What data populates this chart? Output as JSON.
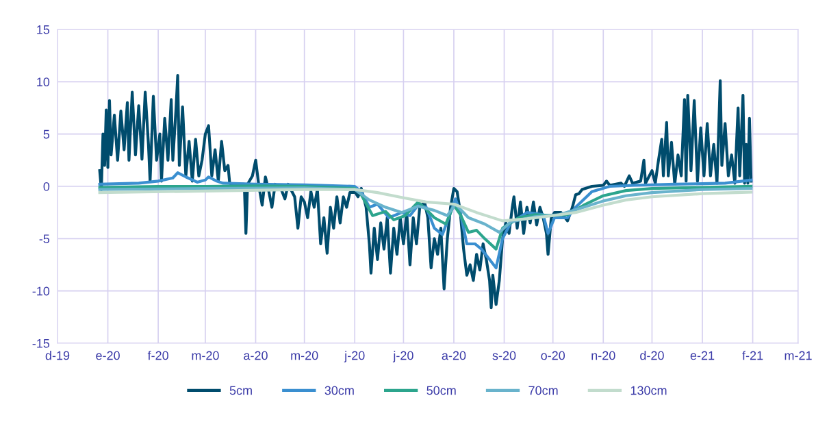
{
  "chart_data": {
    "type": "line",
    "xlim": [
      "2019-12-01",
      "2021-03-01"
    ],
    "ylim": [
      -15,
      15
    ],
    "yticks": [
      -15,
      -10,
      -5,
      0,
      5,
      10,
      15
    ],
    "xticks": [
      {
        "value": "2019-12-01",
        "label": "d-19"
      },
      {
        "value": "2020-01-01",
        "label": "e-20"
      },
      {
        "value": "2020-02-01",
        "label": "f-20"
      },
      {
        "value": "2020-03-01",
        "label": "m-20"
      },
      {
        "value": "2020-04-01",
        "label": "a-20"
      },
      {
        "value": "2020-05-01",
        "label": "m-20"
      },
      {
        "value": "2020-06-01",
        "label": "j-20"
      },
      {
        "value": "2020-07-01",
        "label": "j-20"
      },
      {
        "value": "2020-08-01",
        "label": "a-20"
      },
      {
        "value": "2020-09-01",
        "label": "s-20"
      },
      {
        "value": "2020-10-01",
        "label": "o-20"
      },
      {
        "value": "2020-11-01",
        "label": "n-20"
      },
      {
        "value": "2020-12-01",
        "label": "d-20"
      },
      {
        "value": "2021-01-01",
        "label": "e-21"
      },
      {
        "value": "2021-02-01",
        "label": "f-21"
      },
      {
        "value": "2021-03-01",
        "label": "m-21"
      }
    ],
    "grid": true,
    "legend": "bottom",
    "marker": "none",
    "line_style": "solid",
    "series": [
      {
        "name": "5cm",
        "color": "#004c6d",
        "x": [
          "2019-12-27",
          "2019-12-28",
          "2019-12-29",
          "2019-12-30",
          "2019-12-31",
          "2020-01-01",
          "2020-01-02",
          "2020-01-03",
          "2020-01-05",
          "2020-01-07",
          "2020-01-09",
          "2020-01-11",
          "2020-01-13",
          "2020-01-14",
          "2020-01-16",
          "2020-01-18",
          "2020-01-20",
          "2020-01-22",
          "2020-01-24",
          "2020-01-26",
          "2020-01-27",
          "2020-01-29",
          "2020-01-31",
          "2020-02-02",
          "2020-02-03",
          "2020-02-05",
          "2020-02-07",
          "2020-02-09",
          "2020-02-10",
          "2020-02-12",
          "2020-02-13",
          "2020-02-14",
          "2020-02-16",
          "2020-02-18",
          "2020-02-20",
          "2020-02-22",
          "2020-02-24",
          "2020-02-26",
          "2020-02-28",
          "2020-03-01",
          "2020-03-03",
          "2020-03-05",
          "2020-03-07",
          "2020-03-09",
          "2020-03-11",
          "2020-03-13",
          "2020-03-15",
          "2020-03-16",
          "2020-03-18",
          "2020-03-25",
          "2020-03-26",
          "2020-03-27",
          "2020-03-30",
          "2020-04-01",
          "2020-04-03",
          "2020-04-05",
          "2020-04-07",
          "2020-04-09",
          "2020-04-11",
          "2020-04-13",
          "2020-04-17",
          "2020-04-19",
          "2020-04-21",
          "2020-04-25",
          "2020-04-27",
          "2020-04-29",
          "2020-05-01",
          "2020-05-03",
          "2020-05-05",
          "2020-05-07",
          "2020-05-09",
          "2020-05-11",
          "2020-05-13",
          "2020-05-15",
          "2020-05-17",
          "2020-05-19",
          "2020-05-21",
          "2020-05-23",
          "2020-05-25",
          "2020-05-27",
          "2020-05-29",
          "2020-06-01",
          "2020-06-03",
          "2020-06-05",
          "2020-06-08",
          "2020-06-10",
          "2020-06-11",
          "2020-06-13",
          "2020-06-15",
          "2020-06-17",
          "2020-06-19",
          "2020-06-21",
          "2020-06-23",
          "2020-06-25",
          "2020-06-27",
          "2020-06-29",
          "2020-07-01",
          "2020-07-03",
          "2020-07-05",
          "2020-07-07",
          "2020-07-09",
          "2020-07-11",
          "2020-07-14",
          "2020-07-16",
          "2020-07-18",
          "2020-07-20",
          "2020-07-22",
          "2020-07-24",
          "2020-07-26",
          "2020-07-28",
          "2020-07-30",
          "2020-08-01",
          "2020-08-03",
          "2020-08-05",
          "2020-08-07",
          "2020-08-09",
          "2020-08-11",
          "2020-08-13",
          "2020-08-15",
          "2020-08-17",
          "2020-08-19",
          "2020-08-21",
          "2020-08-23",
          "2020-08-24",
          "2020-08-25",
          "2020-08-27",
          "2020-08-29",
          "2020-08-31",
          "2020-09-02",
          "2020-09-04",
          "2020-09-06",
          "2020-09-07",
          "2020-09-09",
          "2020-09-11",
          "2020-09-13",
          "2020-09-15",
          "2020-09-17",
          "2020-09-19",
          "2020-09-21",
          "2020-09-23",
          "2020-09-25",
          "2020-09-27",
          "2020-09-28",
          "2020-09-30",
          "2020-10-02",
          "2020-10-06",
          "2020-10-10",
          "2020-10-13",
          "2020-10-15",
          "2020-10-17",
          "2020-10-19",
          "2020-10-25",
          "2020-11-01",
          "2020-11-03",
          "2020-11-05",
          "2020-11-12",
          "2020-11-14",
          "2020-11-17",
          "2020-11-19",
          "2020-11-24",
          "2020-11-26",
          "2020-11-27",
          "2020-12-01",
          "2020-12-03",
          "2020-12-05",
          "2020-12-07",
          "2020-12-08",
          "2020-12-10",
          "2020-12-11",
          "2020-12-13",
          "2020-12-15",
          "2020-12-17",
          "2020-12-19",
          "2020-12-21",
          "2020-12-22",
          "2020-12-23",
          "2020-12-25",
          "2020-12-27",
          "2020-12-29",
          "2020-12-31",
          "2021-01-02",
          "2021-01-04",
          "2021-01-06",
          "2021-01-08",
          "2021-01-10",
          "2021-01-12",
          "2021-01-13",
          "2021-01-15",
          "2021-01-17",
          "2021-01-19",
          "2021-01-21",
          "2021-01-22",
          "2021-01-23",
          "2021-01-24",
          "2021-01-26",
          "2021-01-27",
          "2021-01-28",
          "2021-01-29",
          "2021-01-30",
          "2021-01-31"
        ],
        "values": [
          1.5,
          -0.3,
          5,
          2,
          7.3,
          1.8,
          8.2,
          3,
          6.8,
          2.5,
          7.2,
          3.5,
          8,
          2.5,
          9,
          3,
          7.7,
          2.6,
          9,
          4,
          0.5,
          8.6,
          2.5,
          5,
          0.5,
          6.5,
          2.5,
          8.3,
          2.5,
          7.5,
          10.6,
          2,
          7.6,
          1,
          4.3,
          0.5,
          4.5,
          1,
          2.5,
          5,
          5.8,
          1,
          3.5,
          0.5,
          4.3,
          1.5,
          2,
          0.3,
          0.2,
          0.2,
          -4.5,
          0.2,
          1,
          2.5,
          0,
          -1.8,
          0.9,
          -0.4,
          -2,
          0.2,
          -0.4,
          -1.2,
          0.2,
          -1,
          -4,
          -1,
          -1.5,
          -3,
          -0.5,
          -2,
          -0.3,
          -5.5,
          -3,
          -6.4,
          -2,
          -4,
          -1,
          -3.5,
          -1,
          -2,
          -0.6,
          -0.5,
          -1,
          -0.2,
          -2,
          -5.5,
          -8.3,
          -4,
          -7,
          -3.5,
          -6,
          -3,
          -8.3,
          -4,
          -6.5,
          -3,
          -5.5,
          -2.5,
          -7.5,
          -3,
          -5.5,
          -2,
          -1.5,
          -3,
          -7.8,
          -5,
          -6.5,
          -4,
          -9.8,
          -5,
          -2,
          -0.2,
          -0.5,
          -2.5,
          -6,
          -8.5,
          -7.5,
          -9,
          -6.5,
          -8,
          -5.5,
          -7,
          -9,
          -11.6,
          -8.5,
          -11.3,
          -9,
          -5,
          -3.5,
          -4.5,
          -2,
          -1,
          -4,
          -1.5,
          -4.5,
          -2,
          -3.5,
          -1.5,
          -3.7,
          -2,
          -3,
          -4.5,
          -6.5,
          -3,
          -2.5,
          -2.5,
          -3.3,
          -2,
          -0.8,
          -0.7,
          -0.3,
          0,
          0.1,
          0.5,
          0.1,
          0.3,
          0,
          1,
          0.3,
          0.5,
          2.5,
          0.3,
          1.5,
          0.3,
          2.5,
          4.5,
          1,
          6.1,
          1,
          4.2,
          0.2,
          3,
          1,
          8.3,
          0.5,
          8.7,
          1.5,
          8.2,
          0.5,
          5.6,
          1,
          6,
          1,
          4,
          0.3,
          10.1,
          2,
          6,
          1,
          3,
          0.3,
          4,
          7.5,
          1,
          8.7,
          0.3,
          4,
          0.3,
          6.5,
          0.5
        ]
      },
      {
        "name": "30cm",
        "color": "#3a8fd0",
        "x": [
          "2019-12-27",
          "2020-01-20",
          "2020-02-01",
          "2020-02-10",
          "2020-02-13",
          "2020-02-18",
          "2020-02-25",
          "2020-03-01",
          "2020-03-03",
          "2020-03-08",
          "2020-03-12",
          "2020-04-01",
          "2020-05-01",
          "2020-06-01",
          "2020-06-05",
          "2020-06-10",
          "2020-06-15",
          "2020-06-22",
          "2020-06-30",
          "2020-07-05",
          "2020-07-10",
          "2020-07-15",
          "2020-07-20",
          "2020-07-25",
          "2020-07-30",
          "2020-08-02",
          "2020-08-05",
          "2020-08-09",
          "2020-08-14",
          "2020-08-18",
          "2020-08-22",
          "2020-08-27",
          "2020-08-31",
          "2020-09-05",
          "2020-09-15",
          "2020-09-25",
          "2020-09-28",
          "2020-10-02",
          "2020-10-10",
          "2020-10-15",
          "2020-10-25",
          "2020-11-05",
          "2020-11-20",
          "2020-12-15",
          "2021-01-15",
          "2021-01-31"
        ],
        "values": [
          0.2,
          0.3,
          0.5,
          0.8,
          1.3,
          0.9,
          0.4,
          0.6,
          0.9,
          0.5,
          0.3,
          0.2,
          0.15,
          0,
          -0.5,
          -2.0,
          -1.7,
          -3.0,
          -2.5,
          -2.8,
          -1.8,
          -2.0,
          -4.0,
          -4.6,
          -2.5,
          -1.2,
          -2.5,
          -5.5,
          -5.5,
          -6.0,
          -6.8,
          -7.8,
          -5.0,
          -3.5,
          -2.5,
          -2.7,
          -4.5,
          -3.0,
          -3.0,
          -2.0,
          -0.5,
          0,
          0.1,
          0.2,
          0.3,
          0.6
        ]
      },
      {
        "name": "50cm",
        "color": "#2ca58d",
        "x": [
          "2019-12-27",
          "2020-02-01",
          "2020-03-01",
          "2020-04-01",
          "2020-05-01",
          "2020-06-01",
          "2020-06-05",
          "2020-06-12",
          "2020-06-20",
          "2020-06-25",
          "2020-07-02",
          "2020-07-10",
          "2020-07-15",
          "2020-07-20",
          "2020-07-27",
          "2020-08-01",
          "2020-08-05",
          "2020-08-10",
          "2020-08-15",
          "2020-08-20",
          "2020-08-27",
          "2020-08-31",
          "2020-09-10",
          "2020-09-20",
          "2020-10-01",
          "2020-10-10",
          "2020-10-20",
          "2020-11-01",
          "2020-11-15",
          "2020-12-01",
          "2021-01-01",
          "2021-01-31"
        ],
        "values": [
          -0.1,
          0,
          0,
          0.05,
          0,
          -0.2,
          -0.8,
          -2.8,
          -2.4,
          -3.2,
          -2.8,
          -1.5,
          -2.2,
          -3.0,
          -3.6,
          -1.8,
          -2.7,
          -4.4,
          -4.2,
          -5.0,
          -6.0,
          -4.0,
          -3.0,
          -2.7,
          -2.8,
          -2.7,
          -1.8,
          -0.9,
          -0.4,
          -0.2,
          -0.1,
          0
        ]
      },
      {
        "name": "70cm",
        "color": "#69b3cc",
        "x": [
          "2019-12-27",
          "2020-03-01",
          "2020-05-01",
          "2020-06-01",
          "2020-06-10",
          "2020-06-20",
          "2020-06-30",
          "2020-07-10",
          "2020-07-20",
          "2020-07-28",
          "2020-08-02",
          "2020-08-10",
          "2020-08-20",
          "2020-08-29",
          "2020-09-05",
          "2020-09-20",
          "2020-10-05",
          "2020-10-20",
          "2020-11-01",
          "2020-11-15",
          "2020-12-01",
          "2021-01-01",
          "2021-01-31"
        ],
        "values": [
          -0.3,
          -0.2,
          -0.15,
          -0.3,
          -1.3,
          -2.0,
          -2.5,
          -1.9,
          -2.3,
          -2.8,
          -1.7,
          -3.0,
          -3.6,
          -4.4,
          -3.4,
          -2.9,
          -2.7,
          -2.0,
          -1.4,
          -0.9,
          -0.6,
          -0.3,
          -0.2
        ]
      },
      {
        "name": "130cm",
        "color": "#c2dccd",
        "x": [
          "2019-12-27",
          "2020-03-01",
          "2020-05-01",
          "2020-06-01",
          "2020-06-15",
          "2020-07-01",
          "2020-07-15",
          "2020-08-01",
          "2020-08-15",
          "2020-08-31",
          "2020-09-15",
          "2020-10-01",
          "2020-10-15",
          "2020-11-01",
          "2020-11-15",
          "2020-12-01",
          "2021-01-01",
          "2021-01-31"
        ],
        "values": [
          -0.6,
          -0.45,
          -0.3,
          -0.3,
          -0.6,
          -1.1,
          -1.5,
          -1.7,
          -2.5,
          -3.3,
          -3.1,
          -2.8,
          -2.5,
          -1.8,
          -1.3,
          -1.0,
          -0.7,
          -0.55
        ]
      }
    ]
  }
}
